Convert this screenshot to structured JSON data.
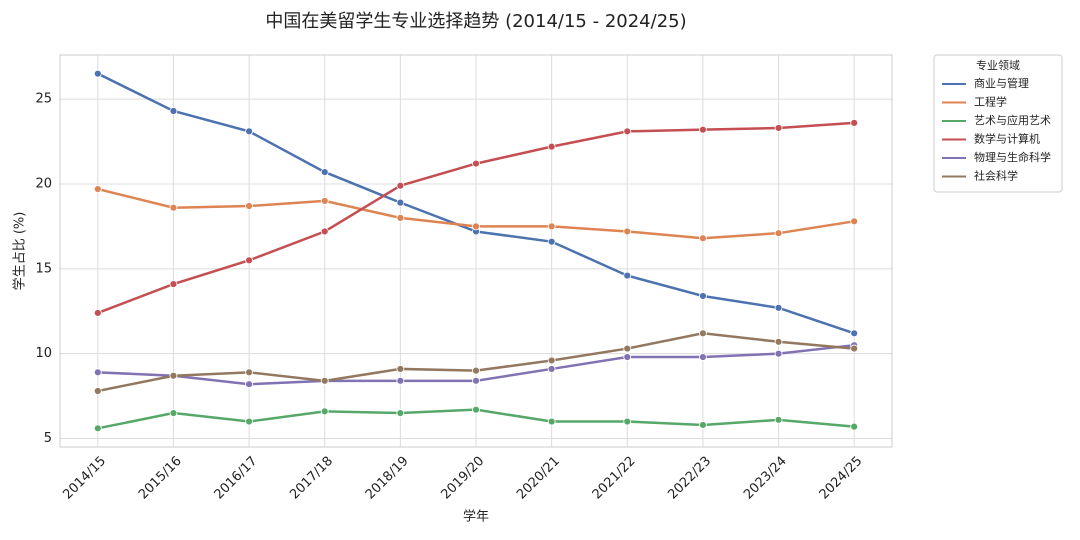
{
  "chart_data": {
    "type": "line",
    "title": "中国在美留学生专业选择趋势 (2014/15 - 2024/25)",
    "x_label": "学年",
    "y_label": "学生占比 (%)",
    "categories": [
      "2014/15",
      "2015/16",
      "2016/17",
      "2017/18",
      "2018/19",
      "2019/20",
      "2020/21",
      "2021/22",
      "2022/23",
      "2023/24",
      "2024/25"
    ],
    "series": [
      {
        "name": "商业与管理",
        "color": "#4c72b0",
        "values": [
          26.5,
          24.3,
          23.1,
          20.7,
          18.9,
          17.2,
          16.6,
          14.6,
          13.4,
          12.7,
          11.2
        ]
      },
      {
        "name": "工程学",
        "color": "#dd8452",
        "values": [
          19.7,
          18.6,
          18.7,
          19.0,
          18.0,
          17.5,
          17.5,
          17.2,
          16.8,
          17.1,
          17.8
        ]
      },
      {
        "name": "艺术与应用艺术",
        "color": "#55a868",
        "values": [
          5.6,
          6.5,
          6.0,
          6.6,
          6.5,
          6.7,
          6.0,
          6.0,
          5.8,
          6.1,
          5.7
        ]
      },
      {
        "name": "数学与计算机",
        "color": "#c44e52",
        "values": [
          12.4,
          14.1,
          15.5,
          17.2,
          19.9,
          21.2,
          22.2,
          23.1,
          23.2,
          23.3,
          23.6
        ]
      },
      {
        "name": "物理与生命科学",
        "color": "#8172b3",
        "values": [
          8.9,
          8.7,
          8.2,
          8.4,
          8.4,
          8.4,
          9.1,
          9.8,
          9.8,
          10.0,
          10.5
        ]
      },
      {
        "name": "社会科学",
        "color": "#937860",
        "values": [
          7.8,
          8.7,
          8.9,
          8.4,
          9.1,
          9.0,
          9.6,
          10.3,
          11.2,
          10.7,
          10.3
        ]
      }
    ],
    "ylim": [
      4.5,
      27.6
    ],
    "yticks": [
      5,
      10,
      15,
      20,
      25
    ],
    "grid": true,
    "legend_title": "专业领域",
    "legend_position": "right"
  }
}
